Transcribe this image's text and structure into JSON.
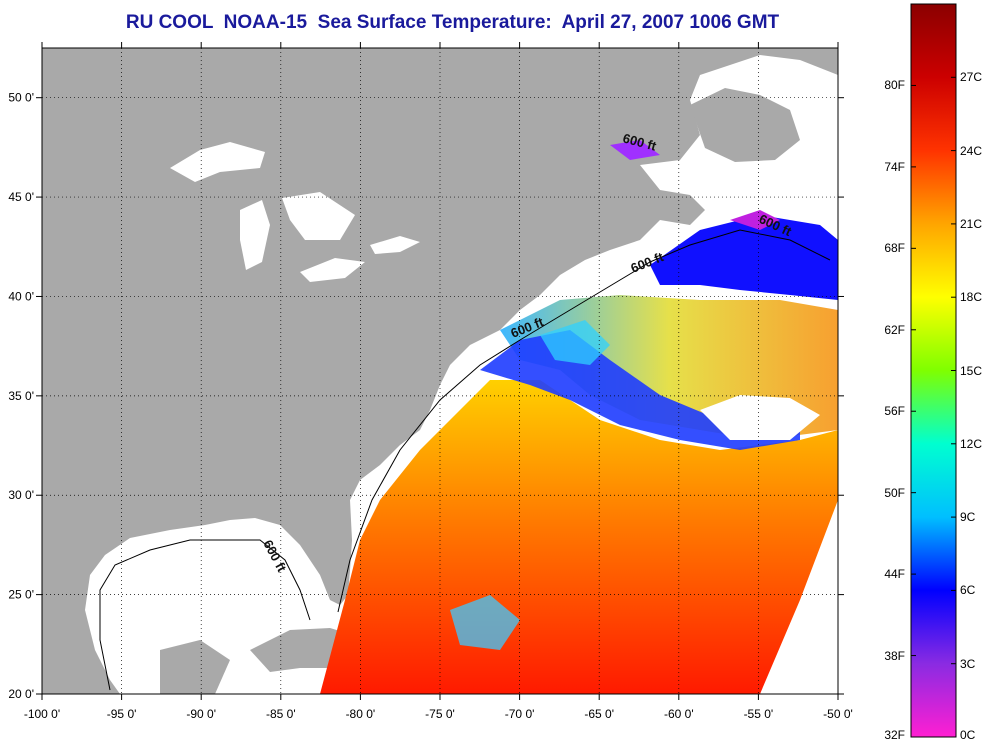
{
  "title": "RU COOL  NOAA-15  Sea Surface Temperature:  April 27, 2007 1006 GMT",
  "map": {
    "lon_range": [
      -100,
      -50
    ],
    "lat_range": [
      20,
      52.5
    ],
    "lon_ticks": [
      "-100 0'",
      "-95 0'",
      "-90 0'",
      "-85 0'",
      "-80 0'",
      "-75 0'",
      "-70 0'",
      "-65 0'",
      "-60 0'",
      "-55 0'",
      "-50 0'"
    ],
    "lat_ticks": [
      "20 0'",
      "25 0'",
      "30 0'",
      "35 0'",
      "40 0'",
      "45 0'",
      "50 0'"
    ],
    "grid": "dotted",
    "isobath_label": "600 ft",
    "colors": {
      "land": "#a9a9a9",
      "no_data": "#ffffff",
      "frame": "#000000"
    }
  },
  "colorbar": {
    "fahrenheit": [
      "80F",
      "74F",
      "68F",
      "62F",
      "56F",
      "50F",
      "44F",
      "38F",
      "32F"
    ],
    "celsius": [
      "27C",
      "24C",
      "21C",
      "18C",
      "15C",
      "12C",
      "9C",
      "6C",
      "3C",
      "0C"
    ],
    "stops": [
      "#ff1fd2",
      "#8a2be2",
      "#0000ff",
      "#00bfff",
      "#00ffd0",
      "#7fff00",
      "#ffff00",
      "#ffa500",
      "#ff3300",
      "#cc0000",
      "#8b0000"
    ]
  }
}
